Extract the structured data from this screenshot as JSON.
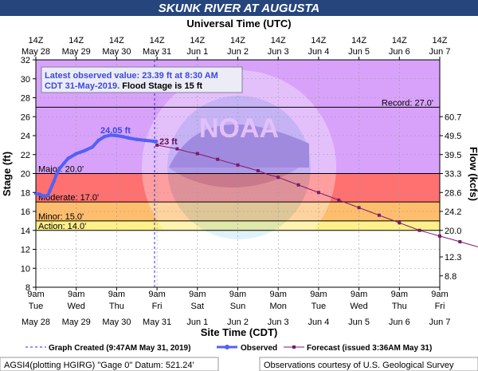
{
  "title": "SKUNK RIVER AT AUGUSTA",
  "top_axis_title": "Universal Time (UTC)",
  "bottom_axis_title": "Site Time (CDT)",
  "left_axis_title": "Stage (ft)",
  "right_axis_title": "Flow (kcfs)",
  "info_line1": "Latest observed value: 23.39 ft at 8:30 AM",
  "info_line2_part1": "CDT 31-May-2019. ",
  "info_line2_part2": "Flood Stage is 15 ft",
  "legend": {
    "graph_created": "Graph Created (9:47AM May 31, 2019)",
    "observed": "Observed",
    "forecast": "Forecast (issued 3:36AM May 31)"
  },
  "footer_left": "AGSI4(plotting HGIRG) \"Gage 0\" Datum:  521.24'",
  "footer_right": "Observations courtesy of U.S. Geological Survey",
  "colors": {
    "title_bar": "#26457d",
    "record_band": "#d8a2fa",
    "major_band": "#ff7070",
    "moderate_band": "#ffbe6e",
    "minor_band": "#ffe675",
    "action_band": "#fff08a",
    "observed": "#5261f5",
    "forecast": "#7a1a6a",
    "created_line": "#2a2ae0"
  },
  "chart_data": {
    "type": "line",
    "ylim": [
      8,
      32
    ],
    "xlim_days_label": [
      "May 28",
      "Jun 7"
    ],
    "left_ticks": [
      8,
      10,
      12,
      14,
      16,
      18,
      20,
      22,
      24,
      26,
      28,
      30,
      32
    ],
    "right_ticks": [
      {
        "stage": 9.2,
        "label": "8.8"
      },
      {
        "stage": 11.2,
        "label": "12.3"
      },
      {
        "stage": 14.0,
        "label": "20.0"
      },
      {
        "stage": 16.0,
        "label": "24.2"
      },
      {
        "stage": 18.0,
        "label": "28.6"
      },
      {
        "stage": 20.0,
        "label": "33.3"
      },
      {
        "stage": 22.0,
        "label": "39.5"
      },
      {
        "stage": 24.0,
        "label": "49.5"
      },
      {
        "stage": 26.0,
        "label": "60.7"
      }
    ],
    "top_ticks": [
      {
        "l1": "14Z",
        "l2": "May 28"
      },
      {
        "l1": "14Z",
        "l2": "May 29"
      },
      {
        "l1": "14Z",
        "l2": "May 30"
      },
      {
        "l1": "14Z",
        "l2": "May 31"
      },
      {
        "l1": "14Z",
        "l2": "Jun 1"
      },
      {
        "l1": "14Z",
        "l2": "Jun 2"
      },
      {
        "l1": "14Z",
        "l2": "Jun 3"
      },
      {
        "l1": "14Z",
        "l2": "Jun 4"
      },
      {
        "l1": "14Z",
        "l2": "Jun 5"
      },
      {
        "l1": "14Z",
        "l2": "Jun 6"
      },
      {
        "l1": "14Z",
        "l2": "Jun 7"
      }
    ],
    "bottom_ticks": [
      {
        "l1": "9am",
        "l2": "Tue",
        "l3": "May 28"
      },
      {
        "l1": "9am",
        "l2": "Wed",
        "l3": "May 29"
      },
      {
        "l1": "9am",
        "l2": "Thu",
        "l3": "May 30"
      },
      {
        "l1": "9am",
        "l2": "Fri",
        "l3": "May 31"
      },
      {
        "l1": "9am",
        "l2": "Sat",
        "l3": "Jun 1"
      },
      {
        "l1": "9am",
        "l2": "Sun",
        "l3": "Jun 2"
      },
      {
        "l1": "9am",
        "l2": "Mon",
        "l3": "Jun 3"
      },
      {
        "l1": "9am",
        "l2": "Tue",
        "l3": "Jun 4"
      },
      {
        "l1": "9am",
        "l2": "Wed",
        "l3": "Jun 5"
      },
      {
        "l1": "9am",
        "l2": "Thu",
        "l3": "Jun 6"
      },
      {
        "l1": "9am",
        "l2": "Fri",
        "l3": "Jun 7"
      }
    ],
    "stages": [
      {
        "name": "Record",
        "value": 27.0,
        "label": "Record:  27.0'"
      },
      {
        "name": "Major",
        "value": 20.0,
        "label": "Major:  20.0'"
      },
      {
        "name": "Moderate",
        "value": 17.0,
        "label": "Moderate:  17.0'"
      },
      {
        "name": "Minor",
        "value": 15.0,
        "label": "Minor:  15.0'"
      },
      {
        "name": "Action",
        "value": 14.0,
        "label": "Action:  14.0'"
      }
    ],
    "observed": {
      "x_days": [
        0.0,
        0.1,
        0.2,
        0.3,
        0.35,
        0.45,
        0.5,
        0.6,
        0.7,
        0.8,
        1.0,
        1.2,
        1.4,
        1.55,
        1.7,
        1.85,
        2.0,
        2.15,
        2.3,
        2.5,
        2.7,
        2.9,
        2.98
      ],
      "values": [
        17.9,
        17.8,
        17.6,
        17.7,
        18.2,
        19.2,
        19.8,
        20.6,
        21.1,
        21.6,
        22.1,
        22.4,
        22.8,
        23.5,
        23.9,
        24.05,
        24.0,
        23.9,
        23.75,
        23.6,
        23.5,
        23.42,
        23.39
      ]
    },
    "forecast": {
      "x_days": [
        3.0,
        3.25,
        3.5,
        3.75,
        4.0,
        4.25,
        4.5,
        4.75,
        5.0,
        5.25,
        5.5,
        5.75,
        6.0,
        6.25,
        6.5,
        6.75,
        7.0,
        7.25,
        7.5,
        7.75,
        8.0,
        8.25,
        8.5,
        8.75,
        9.0,
        9.25,
        9.5,
        9.75,
        10.0,
        10.25,
        10.5,
        10.75,
        11.0,
        11.25,
        11.5,
        11.75,
        12.0,
        12.25,
        12.5,
        12.75,
        13.0,
        13.25,
        13.5,
        13.75
      ],
      "values": [
        23.0,
        22.8,
        22.6,
        22.3,
        22.1,
        21.8,
        21.5,
        21.2,
        20.9,
        20.6,
        20.3,
        19.9,
        19.6,
        19.2,
        18.8,
        18.4,
        18.0,
        17.6,
        17.2,
        16.8,
        16.4,
        16.0,
        15.6,
        15.2,
        14.8,
        14.4,
        14.0,
        13.7,
        13.4,
        13.1,
        12.8,
        12.5,
        12.2,
        11.9,
        11.6,
        11.3,
        11.0,
        10.7,
        10.4,
        10.1,
        9.8,
        9.65,
        9.5,
        9.45
      ]
    },
    "annotations": {
      "peak_label": "24.05 ft",
      "forecast_start_label": "23 ft"
    }
  }
}
